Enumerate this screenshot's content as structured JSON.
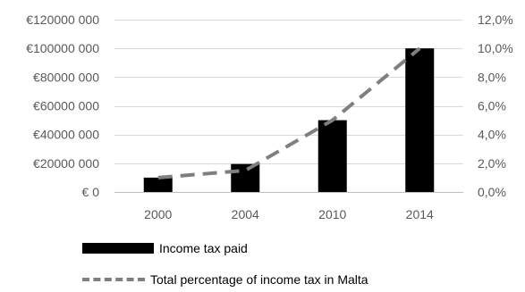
{
  "chart_data": {
    "type": "bar",
    "categories": [
      "2000",
      "2004",
      "2010",
      "2014"
    ],
    "series": [
      {
        "name": "Income tax paid",
        "type": "bar",
        "axis": "left",
        "color": "#000000",
        "values": [
          10000000,
          19500000,
          50000000,
          100000000
        ]
      },
      {
        "name": "Total percentage of income tax in Malta",
        "type": "line",
        "style": "dashed",
        "axis": "right",
        "color": "#7f7f7f",
        "values": [
          1.0,
          1.5,
          5.0,
          10.0
        ]
      }
    ],
    "y_left": {
      "range": [
        0,
        120000000
      ],
      "ticks": [
        0,
        20000000,
        40000000,
        60000000,
        80000000,
        100000000,
        120000000
      ],
      "tick_labels": [
        "€ 0",
        "€20000 000",
        "€40000 000",
        "€60000 000",
        "€80000 000",
        "€100000 000",
        "€120000 000"
      ]
    },
    "y_right": {
      "range": [
        0,
        12
      ],
      "ticks": [
        0,
        2,
        4,
        6,
        8,
        10,
        12
      ],
      "tick_labels": [
        "0,0%",
        "2,0%",
        "4,0%",
        "6,0%",
        "8,0%",
        "10,0%",
        "12,0%"
      ]
    },
    "grid": true,
    "legend": "bottom"
  },
  "legend": {
    "bar_label": "Income tax paid",
    "line_label": "Total percentage of income tax in Malta"
  }
}
